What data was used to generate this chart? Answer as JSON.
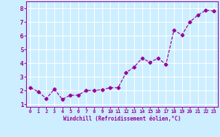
{
  "x": [
    0,
    1,
    2,
    3,
    4,
    5,
    6,
    7,
    8,
    9,
    10,
    11,
    12,
    13,
    14,
    15,
    16,
    17,
    18,
    19,
    20,
    21,
    22,
    23
  ],
  "y": [
    2.2,
    1.9,
    1.4,
    2.1,
    1.35,
    1.65,
    1.65,
    2.0,
    2.0,
    2.05,
    2.2,
    2.2,
    3.3,
    3.7,
    4.35,
    4.05,
    4.35,
    3.9,
    6.4,
    6.05,
    7.0,
    7.5,
    7.85,
    7.8
  ],
  "xlim": [
    -0.5,
    23.5
  ],
  "ylim": [
    0.8,
    8.5
  ],
  "xticks": [
    0,
    1,
    2,
    3,
    4,
    5,
    6,
    7,
    8,
    9,
    10,
    11,
    12,
    13,
    14,
    15,
    16,
    17,
    18,
    19,
    20,
    21,
    22,
    23
  ],
  "yticks": [
    1,
    2,
    3,
    4,
    5,
    6,
    7,
    8
  ],
  "xlabel": "Windchill (Refroidissement éolien,°C)",
  "line_color": "#990099",
  "marker": "D",
  "marker_size": 2.5,
  "line_width": 0.9,
  "bg_color": "#cceeff",
  "grid_color": "#ffffff",
  "tick_color": "#990099",
  "label_color": "#990099",
  "font_family": "monospace",
  "xtick_fontsize": 5.0,
  "ytick_fontsize": 6.5,
  "xlabel_fontsize": 5.5
}
